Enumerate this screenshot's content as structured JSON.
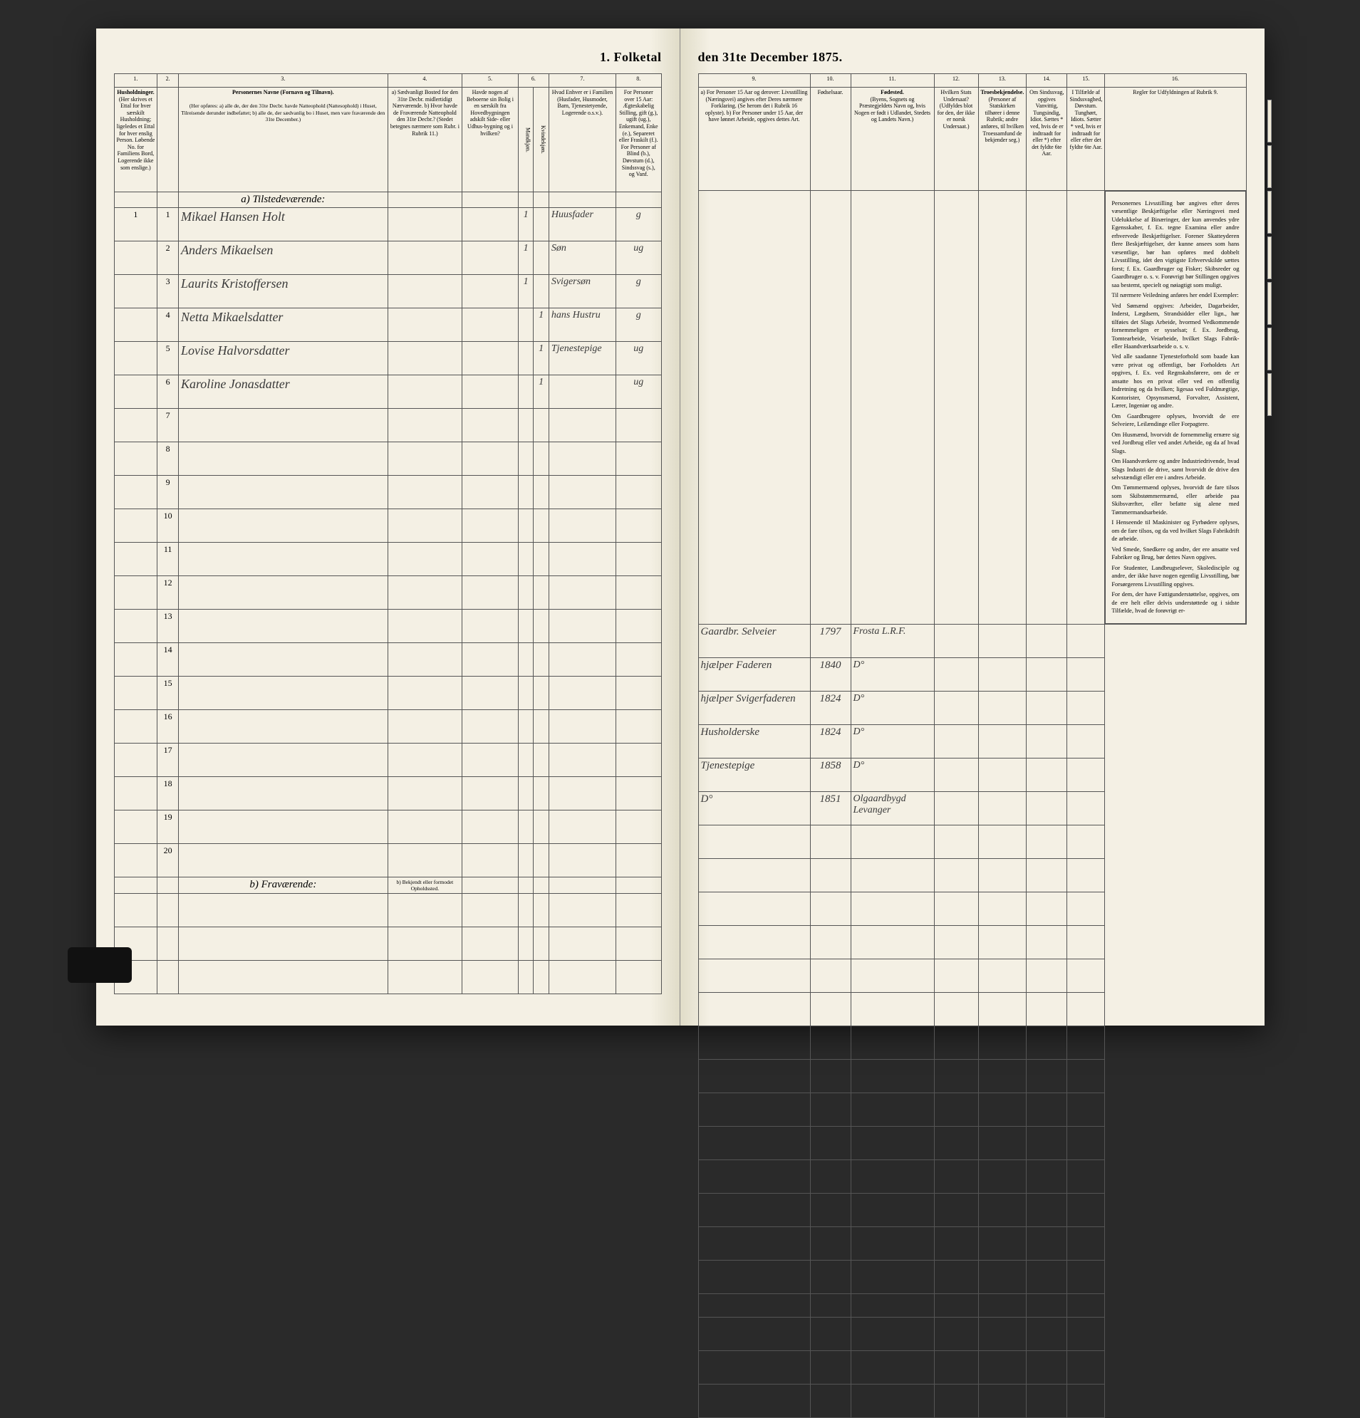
{
  "document": {
    "title_full": "1. Folketal den 31te December 1875.",
    "title_left": "1. Folketal",
    "title_right": "den 31te December 1875."
  },
  "columns_left": {
    "c1": "1.",
    "c2": "2.",
    "c3": "3.",
    "c4": "4.",
    "c5": "5.",
    "c6": "6.",
    "c7": "7.",
    "c8": "8.",
    "h1": "Husholdninger.",
    "h1_sub": "(Her skrives et Ettal for hver særskilt Husholdning; ligeledes et Ettal for hver enslig Person. Løbende No. for Familiens Bord, Logerende ikke som enslige.)",
    "h3": "Personernes Navne (Fornavn og Tilnavn).",
    "h3_sub": "(Her opføres: a) alle de, der den 31te Decbr. havde Natteophold (Nattesophold) i Huset, Tilreisende derunder indbefattet; b) alle de, der sædvanlig bo i Huset, men vare fraværende den 31te December.)",
    "h4": "a) Sædvanligt Bosted for den 31te Decbr. midlertidigt Nærværende. b) Hvor havde de Fraværende Natteophold den 31te Decbr.? (Stedet betegnes nærmere som Rubr. i Rubrik 11.)",
    "h5": "Havde nogen af Beboerne sin Bolig i en særskilt fra Hovedbygningen adskilt Side- eller Udhus-bygning og i hvilken?",
    "h6": "Kjøn.",
    "h6a": "Mandkjøn.",
    "h6b": "Kvindekjøn.",
    "h7": "Hvad Enhver er i Familien (Husfader, Husmoder, Barn, Tjenestetyende, Logerende o.s.v.).",
    "h8": "For Personer over 15 Aar: Ægteskabelig Stilling, gift (g.), ugift (ug.), Enkemand, Enke (e.), Separeret eller Fraskilt (f.). For Personer af Blind (b.), Døvstum (d.), Sindssvag (s.), og Vanf."
  },
  "columns_right": {
    "c9": "9.",
    "c10": "10.",
    "c11": "11.",
    "c12": "12.",
    "c13": "13.",
    "c14": "14.",
    "c15": "15.",
    "c16": "16.",
    "h9": "a) For Personer 15 Aar og derover: Livsstilling (Næringsvei) angives efter Deres nærmere Forklaring. (Se herom det i Rubrik 16 oplyste). b) For Personer under 15 Aar, der have lønnet Arbeide, opgives dettes Art.",
    "h10": "Fødselsaar.",
    "h11": "Fødested.",
    "h11_sub": "(Byens, Sognets og Præstegjeldets Navn og, hvis Nogen er født i Udlandet, Stedets og Landets Navn.)",
    "h12": "Hvilken Stats Undersaat?",
    "h12_sub": "(Udfyldes blot for den, der ikke er norsk Undersaat.)",
    "h13": "Troesbekjendelse.",
    "h13_sub": "(Personer af Statskirken tilhører i denne Rubrik; andre anføres, til hvilken Troessamfund de bekjender seg.)",
    "h14": "Om Sindssvag, opgives Vanvittig, Tungsindig, Idiot. Sættes * ved, hvis de er indtraadt for eller *) efter det fyldte 6te Aar.",
    "h15": "I Tilfælde af Sindssvaghed, Døvstum. Tunghørt, Idiots. Sætter * ved, hvis er indtraadt for eller efter det fyldte 6te Aar.",
    "h16_title": "Regler for Udfyldningen af Rubrik 9."
  },
  "sections": {
    "a_present": "a) Tilstedeværende:",
    "b_absent": "b) Fraværende:",
    "b_note": "b) Bekjendt eller formodet Opholdssted."
  },
  "rows": [
    {
      "num": "1",
      "hh": "1",
      "name": "Mikael Hansen Holt",
      "c5": "",
      "c6a": "1",
      "c6b": "",
      "c7": "Huusfader",
      "c8": "g",
      "c9": "Gaardbr. Selveier",
      "c10": "1797",
      "c11": "Frosta L.R.F."
    },
    {
      "num": "2",
      "hh": "",
      "name": "Anders Mikaelsen",
      "c5": "",
      "c6a": "1",
      "c6b": "",
      "c7": "Søn",
      "c8": "ug",
      "c9": "hjælper Faderen",
      "c10": "1840",
      "c11": "D°"
    },
    {
      "num": "3",
      "hh": "",
      "name": "Laurits Kristoffersen",
      "c5": "",
      "c6a": "1",
      "c6b": "",
      "c7": "Svigersøn",
      "c8": "g",
      "c9": "hjælper Svigerfaderen",
      "c10": "1824",
      "c11": "D°"
    },
    {
      "num": "4",
      "hh": "",
      "name": "Netta Mikaelsdatter",
      "c5": "",
      "c6a": "",
      "c6b": "1",
      "c7": "hans Hustru",
      "c8": "g",
      "c9": "Husholderske",
      "c10": "1824",
      "c11": "D°"
    },
    {
      "num": "5",
      "hh": "",
      "name": "Lovise Halvorsdatter",
      "c5": "",
      "c6a": "",
      "c6b": "1",
      "c7": "Tjenestepige",
      "c8": "ug",
      "c9": "Tjenestepige",
      "c10": "1858",
      "c11": "D°"
    },
    {
      "num": "6",
      "hh": "",
      "name": "Karoline Jonasdatter",
      "c5": "",
      "c6a": "",
      "c6b": "1",
      "c7": "",
      "c8": "ug",
      "c9": "D°",
      "c10": "1851",
      "c11": "Olgaardbygd Levanger"
    }
  ],
  "empty_rows": [
    "7",
    "8",
    "9",
    "10",
    "11",
    "12",
    "13",
    "14",
    "15",
    "16",
    "17",
    "18",
    "19",
    "20"
  ],
  "rules_text": {
    "title": "Regler for Udfyldningen af Rubrik 9.",
    "paragraphs": [
      "Personernes Livsstilling bør angives efter deres væsentlige Beskjæftigelse eller Næringsvei med Udelukkelse af Binæringer, der kun anvendes ydre Egensskaber, f. Ex. tegne Examina eller andre erhvervede Beskjæftigelser. Forener Skatteyderen flere Beskjæftigelser, der kunne ansees som hans væsentlige, bør han opføres med dobbelt Livsstilling, idet den vigtigste Erhvervskilde sættes forst; f. Ex. Gaardbruger og Fisker; Skibsreder og Gaardbruger o. s. v. Forøvrigt bør Stillingen opgives saa bestemt, specielt og nøiagtigt som muligt.",
      "Til nærmere Veiledning anføres her endel Exempler:",
      "Ved Sømænd opgives: Arbeider, Dagarbeider, Inderst, Lægdsem, Strandsidder eller lign., hør tilføies det Slags Arbeide, hvormed Vedkommende fornemmeligen er sysselsat; f. Ex. Jordbrug, Tomtearbeide, Veiarbeide, hvilket Slags Fabrik- eller Haandværksarbeide o. s. v.",
      "Ved alle saadanne Tjenesteforhold som baade kan være privat og offentligt, bør Forholdets Art opgives, f. Ex. ved Regnskabsførere, om de er ansatte hos en privat eller ved en offentlig Indretning og da hvilken; ligesaa ved Fuldmægtige, Kontorister, Opsynsmænd, Forvalter, Assistent, Lærer, Ingeniør og andre.",
      "Om Gaardbrugere oplyses, hvorvidt de ere Selveiere, Leilændinge eller Forpagtere.",
      "Om Husmænd, hvorvidt de fornemmelig ernære sig ved Jordbrug eller ved andet Arbeide, og da af hvad Slags.",
      "Om Haandværkere og andre Industriedrivende, hvad Slags Industri de drive, samt hvorvidt de drive den selvstændigt eller ere i andres Arbeide.",
      "Om Tømmermænd oplyses, hvorvidt de fare tilsos som Skibstømmermænd, eller arbeide paa Skibsværfter, eller befatte sig alene med Tømmermandsarbeide.",
      "I Henseende til Maskinister og Fyrbødere oplyses, om de fare tilsos, og da ved hvilket Slags Fabrikdrift de arbeide.",
      "Ved Smede, Snedkere og andre, der ere ansatte ved Fabriker og Brug, bør dettes Navn opgives.",
      "For Studenter, Landbrugselever, Skoledisciple og andre, der ikke have nogen egentlig Livsstilling, bør Forsørgerens Livsstilling opgives.",
      "For dem, der have Fattigunderstøttelse, opgives, om de ere helt eller delvis understøttede og i sidste Tilfælde, hvad de forøvrigt er-"
    ]
  },
  "colors": {
    "paper": "#f4f0e4",
    "ink": "#3a3a3a",
    "rule": "#555555",
    "shadow": "#2a2a2a"
  },
  "typography": {
    "title_size_pt": 18,
    "header_size_pt": 8,
    "body_size_pt": 9,
    "handwriting_size_pt": 18,
    "rules_size_pt": 8.5
  }
}
